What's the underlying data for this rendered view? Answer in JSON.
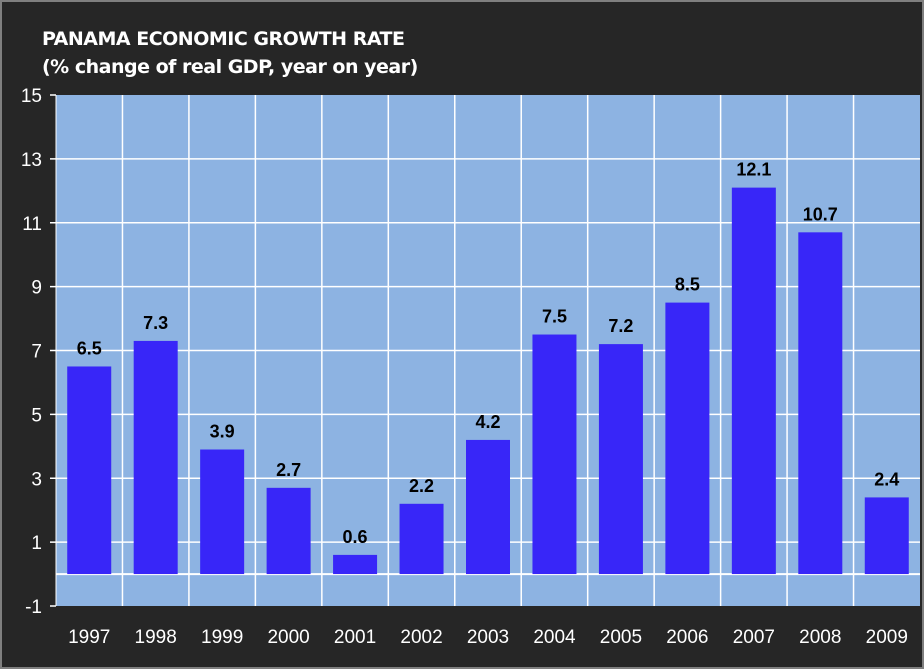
{
  "chart_data": {
    "type": "bar",
    "title": "PANAMA ECONOMIC GROWTH RATE",
    "subtitle": "(% change of real GDP,  year on year)",
    "categories": [
      "1997",
      "1998",
      "1999",
      "2000",
      "2001",
      "2002",
      "2003",
      "2004",
      "2005",
      "2006",
      "2007",
      "2008",
      "2009"
    ],
    "values": [
      6.5,
      7.3,
      3.9,
      2.7,
      0.6,
      2.2,
      4.2,
      7.5,
      7.2,
      8.5,
      12.1,
      10.7,
      2.4
    ],
    "data_labels": [
      "6.5",
      "7.3",
      "3.9",
      "2.7",
      "0.6",
      "2.2",
      "4.2",
      "7.5",
      "7.2",
      "8.5",
      "12.1",
      "10.7",
      "2.4"
    ],
    "ylim": [
      -1,
      15
    ],
    "yticks": [
      "15",
      "13",
      "11",
      "9",
      "7",
      "5",
      "3",
      "1",
      "-1"
    ],
    "grid": true,
    "legend": "none",
    "colors": {
      "bar": "#3826f8",
      "plot_bg": "#8db3e2",
      "background": "#262626",
      "grid": "#ffffff"
    }
  }
}
